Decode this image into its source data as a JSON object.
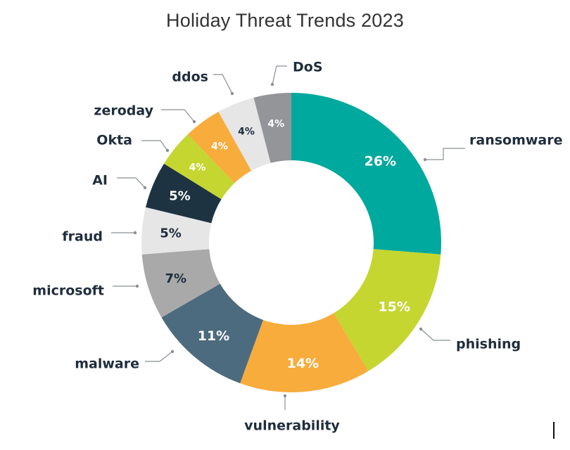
{
  "chart_data": {
    "type": "pie",
    "donut": true,
    "title": "Holiday Threat Trends 2023",
    "unit": "%",
    "legend": "none (leader-line callouts around the ring)",
    "slices": [
      {
        "label": "ransomware",
        "value": 26,
        "color": "#00a99d",
        "text_color": "#ffffff"
      },
      {
        "label": "phishing",
        "value": 15,
        "color": "#c5d630",
        "text_color": "#ffffff"
      },
      {
        "label": "vulnerability",
        "value": 14,
        "color": "#f7ac3c",
        "text_color": "#ffffff"
      },
      {
        "label": "malware",
        "value": 11,
        "color": "#4d6b7f",
        "text_color": "#ffffff"
      },
      {
        "label": "microsoft",
        "value": 7,
        "color": "#a9a9a9",
        "text_color": "#1f2d3d"
      },
      {
        "label": "fraud",
        "value": 5,
        "color": "#e6e6e6",
        "text_color": "#1f2d3d"
      },
      {
        "label": "AI",
        "value": 5,
        "color": "#1e3342",
        "text_color": "#ffffff"
      },
      {
        "label": "Okta",
        "value": 4,
        "color": "#c5d630",
        "text_color": "#ffffff"
      },
      {
        "label": "zeroday",
        "value": 4,
        "color": "#f7ac3c",
        "text_color": "#ffffff"
      },
      {
        "label": "ddos",
        "value": 4,
        "color": "#e6e6e6",
        "text_color": "#1f2d3d"
      },
      {
        "label": "DoS",
        "value": 4,
        "color": "#939598",
        "text_color": "#ffffff"
      }
    ]
  }
}
